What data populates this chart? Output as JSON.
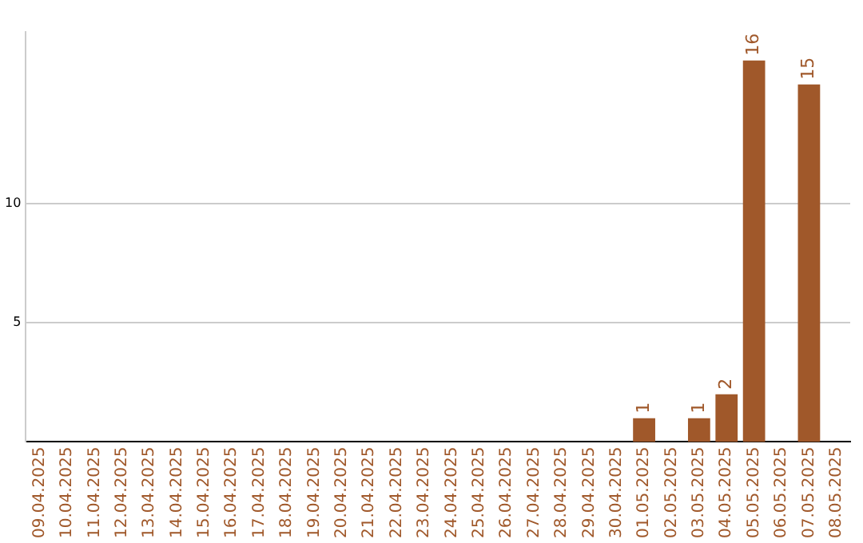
{
  "chart_data": {
    "type": "bar",
    "categories": [
      "09.04.2025",
      "10.04.2025",
      "11.04.2025",
      "12.04.2025",
      "13.04.2025",
      "14.04.2025",
      "15.04.2025",
      "16.04.2025",
      "17.04.2025",
      "18.04.2025",
      "19.04.2025",
      "20.04.2025",
      "21.04.2025",
      "22.04.2025",
      "23.04.2025",
      "24.04.2025",
      "25.04.2025",
      "26.04.2025",
      "27.04.2025",
      "28.04.2025",
      "29.04.2025",
      "30.04.2025",
      "01.05.2025",
      "02.05.2025",
      "03.05.2025",
      "04.05.2025",
      "05.05.2025",
      "06.05.2025",
      "07.05.2025",
      "08.05.2025"
    ],
    "values": [
      0,
      0,
      0,
      0,
      0,
      0,
      0,
      0,
      0,
      0,
      0,
      0,
      0,
      0,
      0,
      0,
      0,
      0,
      0,
      0,
      0,
      0,
      1,
      0,
      1,
      2,
      16,
      0,
      15,
      0
    ],
    "value_labels": [
      null,
      null,
      null,
      null,
      null,
      null,
      null,
      null,
      null,
      null,
      null,
      null,
      null,
      null,
      null,
      null,
      null,
      null,
      null,
      null,
      null,
      null,
      "1",
      null,
      "1",
      "2",
      "16",
      null,
      "15",
      null
    ],
    "color": "#a0582a",
    "ylim": [
      0,
      17.2
    ],
    "yticks": [
      5,
      10
    ],
    "grid": "y"
  }
}
